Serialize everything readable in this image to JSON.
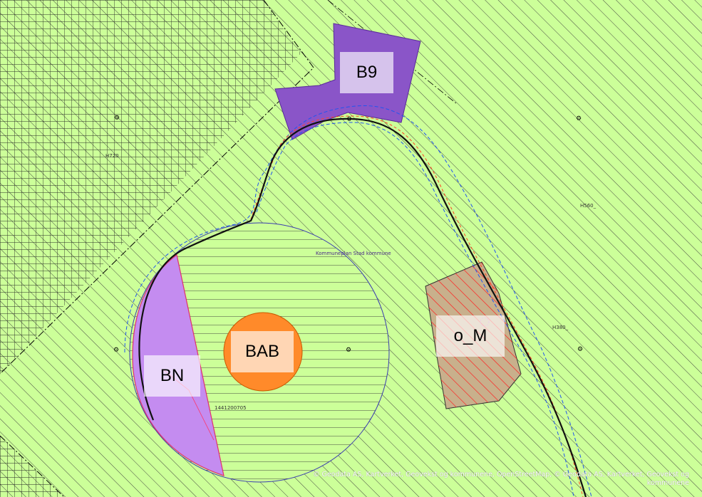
{
  "zones": [
    {
      "id": "B9",
      "label": "B9"
    },
    {
      "id": "BAB",
      "label": "BAB"
    },
    {
      "id": "BN",
      "label": "BN"
    },
    {
      "id": "o_M",
      "label": "o_M"
    }
  ],
  "labels": {
    "h720": "H720",
    "h560": "H560_",
    "h380": "H380_",
    "plan_name": "Kommuneplan Stad kommune",
    "parcel_id": "1441200705"
  },
  "tractor_icon": "tractor-icon",
  "attribution": "© Geodata AS, Kartverket, Geovekst og kommunene, OpenStreetMap, © Geodata AS, Kartverket, Geovekst og kommunene",
  "colors": {
    "background": "#ccff99",
    "hatch": "#3a3a3a",
    "b9_fill": "#8a55c8",
    "bn_fill": "#c48cf0",
    "bab_fill": "#ff8a2a",
    "om_fill": "#c8b08c",
    "om_hatch": "#ff2222",
    "plan_circle": "#3b3bb0",
    "blue_dashed": "#2255ee",
    "red_dashed": "#ff4422",
    "road": "#111111"
  }
}
